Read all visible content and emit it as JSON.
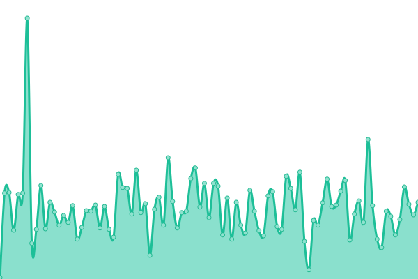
{
  "chart_data": {
    "type": "area",
    "title": "",
    "xlabel": "",
    "ylabel": "",
    "ylim": [
      0,
      100
    ],
    "grid": false,
    "legend": "none",
    "curve": "smooth",
    "markers": true,
    "colors": {
      "line": "#1dbf98",
      "fill": "#8ae0cd",
      "marker_fill": "#8fe2cf",
      "marker_stroke": "#22b891"
    },
    "values": [
      0.5,
      30.8,
      31,
      17.5,
      30.3,
      30.8,
      93.5,
      12.8,
      17.8,
      33.5,
      18,
      27.5,
      24,
      19.3,
      22.8,
      20.3,
      26.3,
      14.3,
      18.5,
      24.5,
      24.3,
      26.5,
      18.3,
      26,
      17.8,
      15,
      37.5,
      32.8,
      32.5,
      23.3,
      39,
      23.8,
      27,
      8.5,
      25,
      29.3,
      19.3,
      43.5,
      27.8,
      18.3,
      23.8,
      24.3,
      36,
      39.8,
      25.8,
      34.3,
      22,
      34.3,
      33.3,
      15.8,
      29,
      14.3,
      27.5,
      19.3,
      16.5,
      31.8,
      24.3,
      17.3,
      15.5,
      29.8,
      31.3,
      18.8,
      17.8,
      36.8,
      32.5,
      24.8,
      38.3,
      13.5,
      3.3,
      21,
      19.3,
      27.3,
      35.8,
      26,
      26.5,
      31.5,
      35.3,
      14,
      23.3,
      28,
      20.3,
      50,
      26.3,
      14.3,
      11.3,
      24.3,
      22.5,
      15.8,
      21.3,
      33,
      26.8,
      23,
      27.5
    ]
  }
}
